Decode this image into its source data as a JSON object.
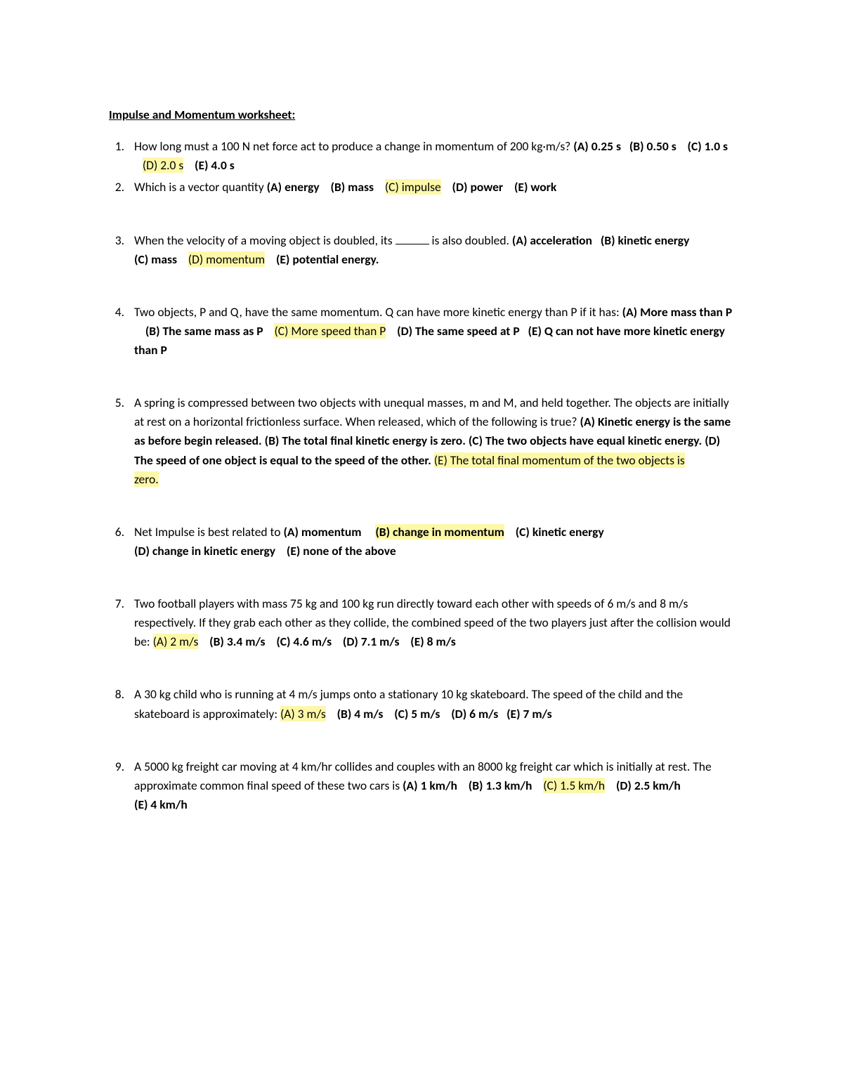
{
  "title": "Impulse and Momentum worksheet:",
  "highlight_color": "#fdf8a8",
  "q1": {
    "stem": "How long must a 100 N net force act to produce a change in momentum of 200 kg·m/s?",
    "a": "(A) 0.25 s",
    "b": "(B) 0.50 s",
    "c": "(C) 1.0 s",
    "d": "(D) 2.0 s",
    "e": "(E) 4.0 s"
  },
  "q2": {
    "stem": " Which is a vector quantity",
    "a": "(A) energy",
    "b": "(B) mass",
    "c": "(C) impulse",
    "d": "(D) power",
    "e": "(E) work"
  },
  "q3": {
    "stem1": " When the velocity of a moving object is doubled, its ",
    "stem2": " is also doubled.",
    "a": "(A) acceleration",
    "b": "(B) kinetic energy",
    "c": "(C) mass",
    "d": "(D) momentum",
    "e": "(E) potential energy."
  },
  "q4": {
    "stem": "Two objects, P and Q, have the same momentum.  Q can have more kinetic energy than P if it has:",
    "a": "(A) More mass than P",
    "b": "(B) The same mass as P",
    "c": "(C) More speed than P",
    "d": "(D) The same speed at P",
    "e": "(E) Q can not have more kinetic energy than P"
  },
  "q5": {
    "stem": " A spring is compressed between two objects with unequal masses, m and M, and held together.  The objects are initially at rest on a horizontal frictionless surface.  When released, which of the following is true?",
    "a": "(A) Kinetic energy is the same as before begin released.",
    "b": "(B) The total final kinetic energy is zero.",
    "c": "(C) The two objects have equal kinetic energy.",
    "d": "(D) The speed of one object is equal to the speed of the other.",
    "e1": "(E) The total final momentum of the two objects is",
    "e2": "zero."
  },
  "q6": {
    "stem": "Net Impulse is best related to",
    "a": "(A) momentum",
    "b": "(B) change in momentum",
    "c": "(C) kinetic energy",
    "d": "(D) change in kinetic energy",
    "e": "(E) none of the above"
  },
  "q7": {
    "stem": "Two football players with mass 75 kg and 100 kg run directly toward each other with speeds of 6 m/s and 8 m/s respectively.  If they grab each other as they collide, the combined speed of the two players just after the collision would be:",
    "a": "(A) 2 m/s",
    "b": "(B) 3.4 m/s",
    "c": "(C) 4.6 m/s",
    "d": "(D) 7.1 m/s",
    "e": "(E) 8 m/s"
  },
  "q8": {
    "stem": "A 30 kg child who is running at 4 m/s jumps onto a stationary 10 kg skateboard.  The speed of the child and the skateboard is approximately:",
    "a": "(A) 3 m/s",
    "b": "(B) 4 m/s",
    "c": "(C) 5 m/s",
    "d": "(D) 6 m/s",
    "e": "(E) 7 m/s"
  },
  "q9": {
    "stem": " A 5000 kg freight car moving at 4 km/hr collides and couples with an 8000 kg freight car which is initially at rest.  The approximate common final speed of these two cars is",
    "a": "(A) 1 km/h",
    "b": "(B) 1.3 km/h",
    "c": "(C) 1.5 km/h",
    "d": "(D) 2.5 km/h",
    "e": "(E) 4 km/h"
  }
}
